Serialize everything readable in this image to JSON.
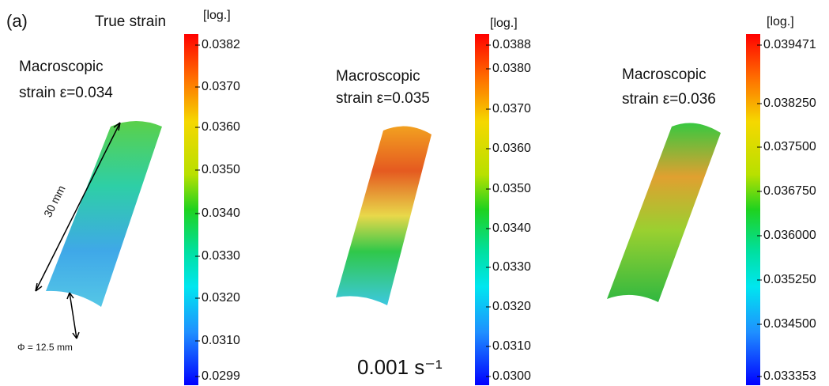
{
  "figure_label": "(a)",
  "colorbar_title": "True strain",
  "dimensions": {
    "length": "30 mm",
    "diameter": "Φ = 12.5 mm"
  },
  "strain_rate": "0.001 s⁻¹",
  "panels": [
    {
      "unit": "[log.]",
      "caption": [
        "Macroscopic",
        "strain ε=0.034"
      ],
      "ticks": [
        "0.0382",
        "0.0370",
        "0.0360",
        "0.0350",
        "0.0340",
        "0.0330",
        "0.0320",
        "0.0310",
        "0.0299"
      ]
    },
    {
      "unit": "[log.]",
      "caption": [
        "Macroscopic",
        "strain ε=0.035"
      ],
      "ticks": [
        "0.0388",
        "0.0380",
        "0.0370",
        "0.0360",
        "0.0350",
        "0.0340",
        "0.0330",
        "0.0320",
        "0.0310",
        "0.0300"
      ]
    },
    {
      "unit": "[log.]",
      "caption": [
        "Macroscopic",
        "strain ε=0.036"
      ],
      "ticks": [
        "0.039471",
        "0.038250",
        "0.037500",
        "0.036750",
        "0.036000",
        "0.035250",
        "0.034500",
        "0.033353"
      ]
    }
  ]
}
